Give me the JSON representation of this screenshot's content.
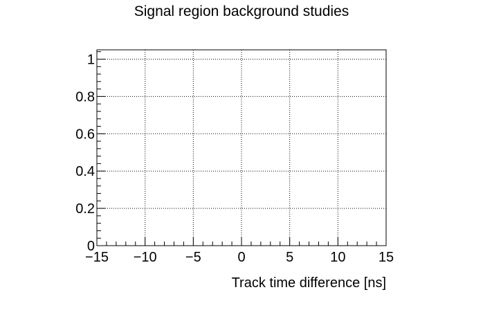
{
  "chart_data": {
    "type": "line",
    "title": "Signal region background studies",
    "xlabel": "Track time difference [ns]",
    "ylabel": "",
    "xlim": [
      -15,
      15
    ],
    "ylim": [
      0,
      1.05
    ],
    "x_ticks": [
      -15,
      -10,
      -5,
      0,
      5,
      10,
      15
    ],
    "x_tick_labels": [
      "−15",
      "−10",
      "−5",
      "0",
      "5",
      "10",
      "15"
    ],
    "y_ticks": [
      0,
      0.2,
      0.4,
      0.6,
      0.8,
      1
    ],
    "y_tick_labels": [
      "0",
      "0.2",
      "0.4",
      "0.6",
      "0.8",
      "1"
    ],
    "grid": true,
    "series": []
  }
}
